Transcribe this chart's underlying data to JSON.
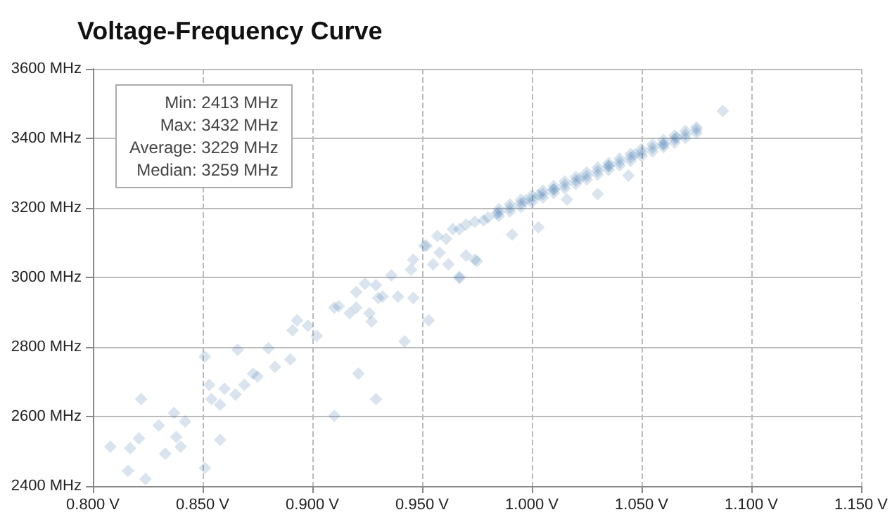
{
  "chart_data": {
    "type": "scatter",
    "title": "Voltage-Frequency Curve",
    "annotations": [
      "Min: 2413 MHz",
      "Max: 3432 MHz",
      "Average: 3229 MHz",
      "Median: 3259 MHz"
    ],
    "xlim": [
      0.8,
      1.15
    ],
    "xticks": [
      {
        "value": 0.8,
        "label": "0.800 V"
      },
      {
        "value": 0.85,
        "label": "0.850 V"
      },
      {
        "value": 0.9,
        "label": "0.900 V"
      },
      {
        "value": 0.95,
        "label": "0.950 V"
      },
      {
        "value": 1.0,
        "label": "1.000 V"
      },
      {
        "value": 1.05,
        "label": "1.050 V"
      },
      {
        "value": 1.1,
        "label": "1.100 V"
      },
      {
        "value": 1.15,
        "label": "1.150 V"
      }
    ],
    "ylim": [
      2400,
      3600
    ],
    "yticks": [
      {
        "value": 2400,
        "label": "2400 MHz"
      },
      {
        "value": 2600,
        "label": "2600 MHz"
      },
      {
        "value": 2800,
        "label": "2800 MHz"
      },
      {
        "value": 3000,
        "label": "3000 MHz"
      },
      {
        "value": 3200,
        "label": "3200 MHz"
      },
      {
        "value": 3400,
        "label": "3400 MHz"
      },
      {
        "value": 3600,
        "label": "3600 MHz"
      }
    ],
    "grid": true,
    "marker": "diamond",
    "series": [
      {
        "color": "#2e6ca6",
        "x": [
          0.808,
          0.817,
          0.821,
          0.822,
          0.816,
          0.824,
          0.83,
          0.833,
          0.837,
          0.84,
          0.842,
          0.838,
          0.851,
          0.851,
          0.853,
          0.854,
          0.858,
          0.858,
          0.86,
          0.866,
          0.865,
          0.869,
          0.873,
          0.875,
          0.88,
          0.883,
          0.89,
          0.891,
          0.893,
          0.898,
          0.902,
          0.91,
          0.912,
          0.917,
          0.92,
          0.921,
          0.91,
          0.927,
          0.926,
          0.924,
          0.92,
          0.929,
          0.929,
          0.93,
          0.932,
          0.936,
          0.939,
          0.942,
          0.945,
          0.946,
          0.946,
          0.953,
          0.952,
          0.955,
          0.962,
          0.967,
          0.97,
          0.975,
          0.958,
          0.961,
          0.967,
          0.974,
          0.98,
          0.951,
          0.957,
          0.964,
          0.97,
          0.978,
          0.984,
          0.967,
          0.974,
          0.991,
          1.003,
          1.016,
          1.03,
          1.044,
          1.087,
          0.985,
          0.99,
          0.995,
          1.0,
          1.005,
          1.01,
          1.015,
          1.02,
          1.025,
          1.03,
          1.035,
          1.04,
          1.045,
          1.05,
          1.055,
          1.06,
          1.065,
          1.07,
          1.075,
          0.985,
          0.99,
          0.995,
          1.0,
          1.005,
          1.01,
          1.015,
          1.02,
          1.025,
          1.03,
          1.035,
          1.04,
          1.045,
          1.05,
          1.055,
          1.06,
          1.065,
          1.07,
          1.075,
          0.985,
          0.99,
          0.995,
          1.0,
          1.005,
          1.01,
          1.015,
          1.02,
          1.025,
          1.03,
          1.035,
          1.04,
          1.045,
          1.05,
          1.055,
          1.06,
          1.065,
          1.07,
          1.075,
          0.997,
          1.003,
          1.01,
          1.022,
          1.035,
          1.047,
          1.06,
          1.066
        ],
        "values": [
          2513,
          2509,
          2537,
          2650,
          2444,
          2420,
          2574,
          2493,
          2610,
          2513,
          2586,
          2541,
          2452,
          2772,
          2691,
          2650,
          2634,
          2533,
          2680,
          2792,
          2663,
          2691,
          2723,
          2715,
          2796,
          2743,
          2764,
          2848,
          2877,
          2861,
          2832,
          2913,
          2917,
          2897,
          2913,
          2723,
          2602,
          2873,
          2897,
          2982,
          2958,
          2650,
          2978,
          2941,
          2945,
          3006,
          2945,
          2816,
          3022,
          3051,
          2941,
          2877,
          3091,
          3038,
          3038,
          2998,
          3063,
          3047,
          3071,
          3111,
          3139,
          3160,
          3172,
          3091,
          3119,
          3139,
          3152,
          3164,
          3184,
          3002,
          3051,
          3123,
          3144,
          3224,
          3240,
          3293,
          3479,
          3187,
          3200,
          3213,
          3226,
          3240,
          3253,
          3266,
          3279,
          3292,
          3306,
          3319,
          3332,
          3345,
          3359,
          3372,
          3385,
          3398,
          3411,
          3425,
          3197,
          3210,
          3223,
          3236,
          3250,
          3263,
          3276,
          3289,
          3302,
          3316,
          3329,
          3342,
          3355,
          3369,
          3382,
          3395,
          3408,
          3421,
          3432,
          3177,
          3190,
          3203,
          3216,
          3230,
          3243,
          3256,
          3269,
          3282,
          3296,
          3309,
          3322,
          3335,
          3349,
          3362,
          3375,
          3388,
          3401,
          3415,
          3220,
          3236,
          3253,
          3285,
          3321,
          3354,
          3382,
          3402
        ]
      }
    ]
  }
}
